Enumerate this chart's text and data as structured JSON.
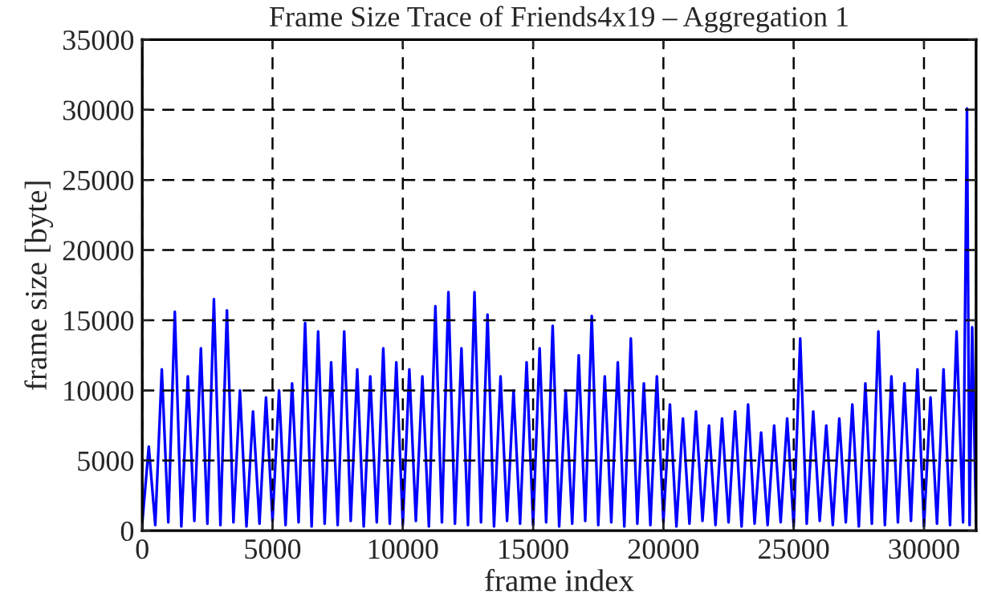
{
  "chart_data": {
    "type": "line",
    "title": "Frame Size Trace of Friends4x19 – Aggregation 1",
    "xlabel": "frame index",
    "ylabel": "frame size [byte]",
    "x": [
      0,
      250,
      500,
      750,
      1000,
      1250,
      1500,
      1750,
      2000,
      2250,
      2500,
      2750,
      3000,
      3250,
      3500,
      3750,
      4000,
      4250,
      4500,
      4750,
      5000,
      5250,
      5500,
      5750,
      6000,
      6250,
      6500,
      6750,
      7000,
      7250,
      7500,
      7750,
      8000,
      8250,
      8500,
      8750,
      9000,
      9250,
      9500,
      9750,
      10000,
      10250,
      10500,
      10750,
      11000,
      11250,
      11500,
      11750,
      12000,
      12250,
      12500,
      12750,
      13000,
      13250,
      13500,
      13750,
      14000,
      14250,
      14500,
      14750,
      15000,
      15250,
      15500,
      15750,
      16000,
      16250,
      16500,
      16750,
      17000,
      17250,
      17500,
      17750,
      18000,
      18250,
      18500,
      18750,
      19000,
      19250,
      19500,
      19750,
      20000,
      20250,
      20500,
      20750,
      21000,
      21250,
      21500,
      21750,
      22000,
      22250,
      22500,
      22750,
      23000,
      23250,
      23500,
      23750,
      24000,
      24250,
      24500,
      24750,
      25000,
      25250,
      25500,
      25750,
      26000,
      26250,
      26500,
      26750,
      27000,
      27250,
      27500,
      27750,
      28000,
      28250,
      28500,
      28750,
      29000,
      29250,
      29500,
      29750,
      30000,
      30250,
      30500,
      30750,
      31000,
      31250,
      31500,
      31650,
      31750,
      31850,
      32000
    ],
    "series": [
      {
        "color": "#0000ff",
        "values": [
          500,
          6000,
          400,
          11500,
          600,
          15600,
          300,
          11000,
          700,
          13000,
          500,
          16500,
          400,
          15700,
          600,
          10000,
          300,
          8500,
          500,
          9500,
          700,
          10000,
          400,
          10500,
          600,
          14800,
          300,
          14200,
          500,
          12000,
          400,
          14200,
          700,
          11500,
          300,
          11000,
          600,
          13000,
          500,
          12000,
          400,
          11500,
          700,
          11000,
          300,
          16000,
          600,
          17000,
          500,
          13000,
          400,
          17000,
          600,
          15400,
          300,
          11000,
          700,
          10000,
          500,
          12000,
          400,
          13000,
          600,
          14600,
          300,
          10000,
          500,
          12500,
          700,
          15300,
          400,
          11000,
          600,
          12000,
          300,
          13700,
          500,
          10500,
          400,
          11000,
          600,
          9000,
          300,
          8000,
          500,
          8500,
          700,
          7500,
          400,
          8000,
          600,
          8500,
          300,
          9000,
          500,
          7000,
          400,
          7500,
          600,
          8000,
          300,
          13700,
          500,
          8500,
          700,
          7500,
          400,
          8000,
          600,
          9000,
          300,
          10500,
          500,
          14200,
          400,
          11000,
          600,
          10500,
          700,
          11500,
          300,
          9500,
          500,
          11500,
          400,
          14200,
          600,
          30100,
          400,
          14500,
          500
        ]
      }
    ],
    "xlim": [
      0,
      32000
    ],
    "ylim": [
      0,
      35000
    ],
    "xticks": [
      0,
      5000,
      10000,
      15000,
      20000,
      25000,
      30000
    ],
    "yticks": [
      0,
      5000,
      10000,
      15000,
      20000,
      25000,
      30000,
      35000
    ],
    "grid": true,
    "legend": false,
    "marker": "none",
    "line_style": "solid"
  }
}
